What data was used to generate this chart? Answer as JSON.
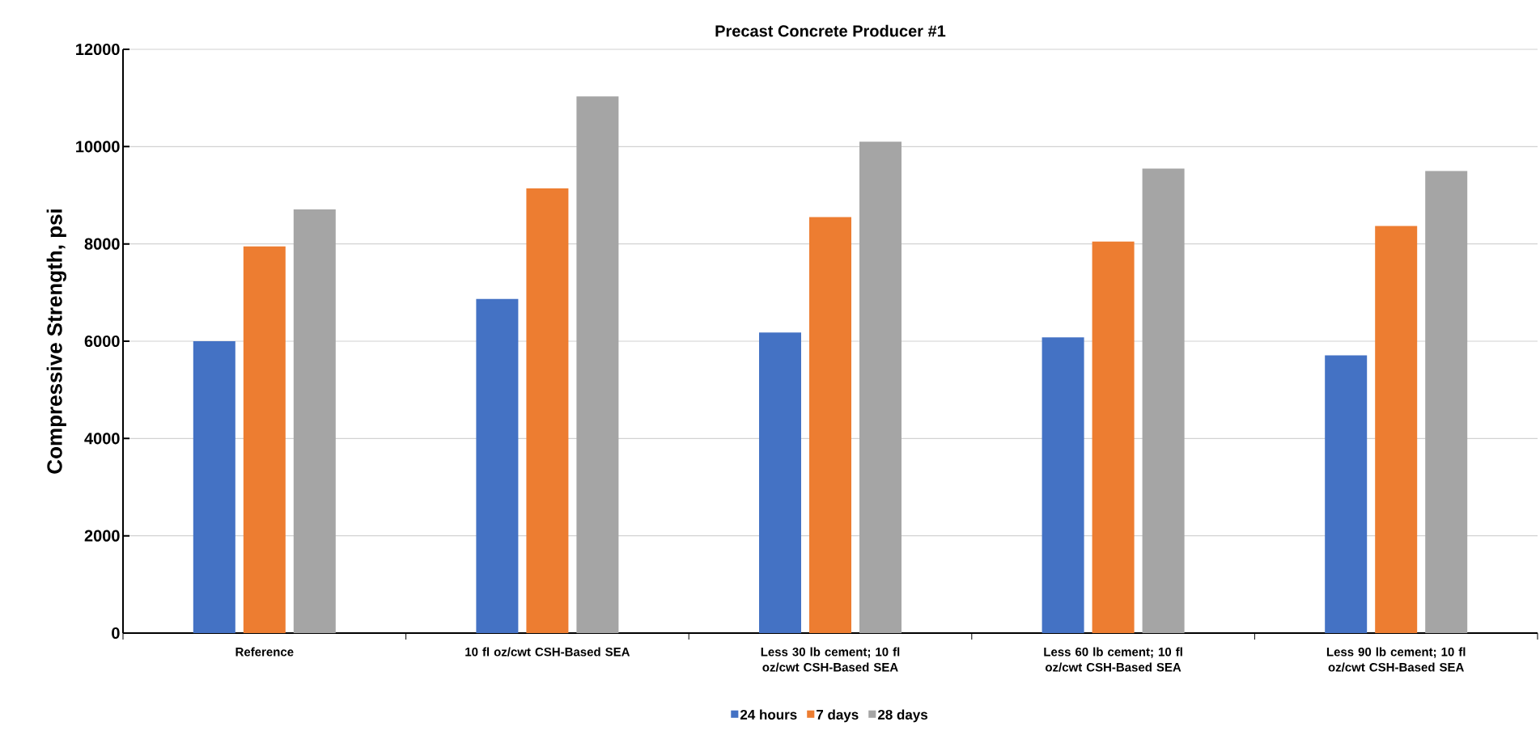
{
  "chart_data": {
    "type": "bar",
    "title": "Precast Concrete Producer #1",
    "ylabel": "Compressive Strength, psi",
    "categories": [
      "Reference",
      "10 fl oz/cwt CSH-Based SEA",
      "Less 30 lb cement; 10 fl oz/cwt CSH-Based SEA",
      "Less 60 lb cement; 10 fl oz/cwt CSH-Based SEA",
      "Less 90 lb cement; 10 fl oz/cwt CSH-Based SEA"
    ],
    "series": [
      {
        "name": "24 hours",
        "color": "#4472c4",
        "values": [
          6000,
          6870,
          6180,
          6080,
          5710
        ]
      },
      {
        "name": "7 days",
        "color": "#ed7d31",
        "values": [
          7950,
          9140,
          8550,
          8050,
          8370
        ]
      },
      {
        "name": "28 days",
        "color": "#a5a5a5",
        "values": [
          8710,
          11030,
          10100,
          9550,
          9500
        ]
      }
    ],
    "ylim": [
      0,
      12000
    ],
    "yticks": [
      0,
      2000,
      4000,
      6000,
      8000,
      10000,
      12000
    ],
    "grid": "y",
    "legend": "bottom"
  }
}
